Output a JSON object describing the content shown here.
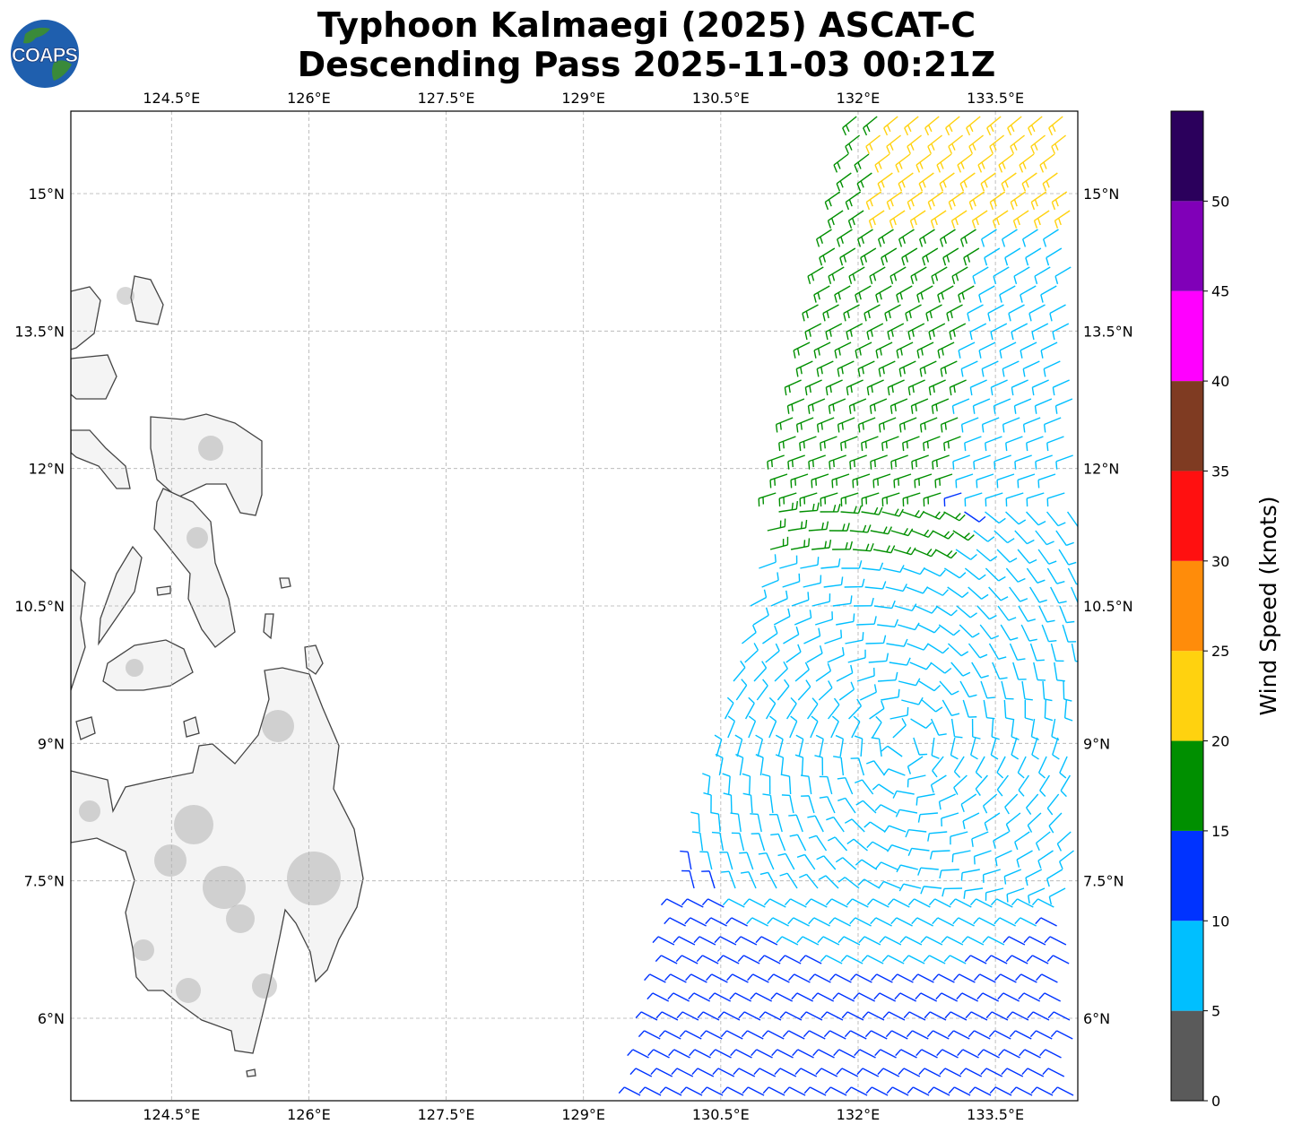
{
  "title": {
    "line1": "Typhoon Kalmaegi (2025) ASCAT-C",
    "line2": "Descending Pass 2025-11-03 00:21Z"
  },
  "logo": {
    "text": "COAPS",
    "icon": "globe-icon"
  },
  "map": {
    "lon_range": [
      123.4,
      134.4
    ],
    "lat_range": [
      5.1,
      15.9
    ],
    "lon_ticks": [
      {
        "value": 124.5,
        "label": "124.5°E"
      },
      {
        "value": 126.0,
        "label": "126°E"
      },
      {
        "value": 127.5,
        "label": "127.5°E"
      },
      {
        "value": 129.0,
        "label": "129°E"
      },
      {
        "value": 130.5,
        "label": "130.5°E"
      },
      {
        "value": 132.0,
        "label": "132°E"
      },
      {
        "value": 133.5,
        "label": "133.5°E"
      }
    ],
    "lat_ticks": [
      {
        "value": 15.0,
        "label": "15°N"
      },
      {
        "value": 13.5,
        "label": "13.5°N"
      },
      {
        "value": 12.0,
        "label": "12°N"
      },
      {
        "value": 10.5,
        "label": "10.5°N"
      },
      {
        "value": 9.0,
        "label": "9°N"
      },
      {
        "value": 7.5,
        "label": "7.5°N"
      },
      {
        "value": 6.0,
        "label": "6°N"
      }
    ],
    "gridlines": true,
    "land_fill": "#f4f4f4",
    "coast_color": "#444444"
  },
  "colorbar": {
    "label": "Wind Speed (knots)",
    "bounds": [
      0,
      5,
      10,
      15,
      20,
      25,
      30,
      35,
      40,
      45,
      50,
      55
    ],
    "colors": [
      "#5a5a5a",
      "#00bfff",
      "#0033ff",
      "#008f00",
      "#ffd20f",
      "#ff8c0a",
      "#ff1010",
      "#7f3b22",
      "#ff00ff",
      "#8000b8",
      "#2b005c"
    ],
    "tick_values": [
      0,
      5,
      10,
      15,
      20,
      25,
      30,
      35,
      40,
      45,
      50
    ],
    "tick_labels": [
      "0",
      "5",
      "10",
      "15",
      "20",
      "25",
      "30",
      "35",
      "40",
      "45",
      "50"
    ]
  }
}
